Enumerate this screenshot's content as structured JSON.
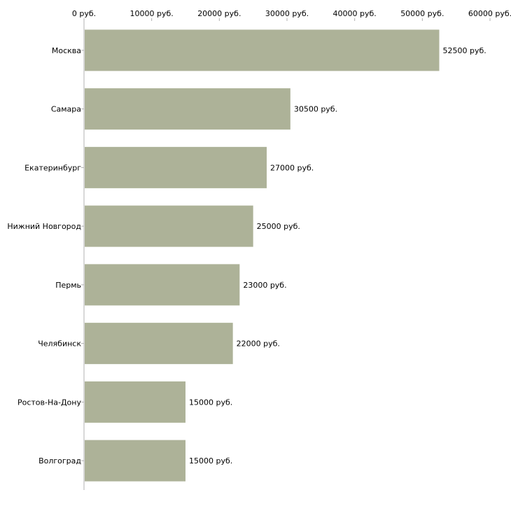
{
  "chart_data": {
    "type": "bar",
    "orientation": "horizontal",
    "title": "",
    "xlabel": "",
    "ylabel": "",
    "xlim": [
      0,
      60000
    ],
    "x_ticks": [
      0,
      10000,
      20000,
      30000,
      40000,
      50000,
      60000
    ],
    "tick_labels": [
      "0 руб.",
      "10000 руб.",
      "20000 руб.",
      "30000 руб.",
      "40000 руб.",
      "50000 руб.",
      "60000 руб."
    ],
    "unit_suffix": " руб.",
    "axis_position": "top",
    "grid": false,
    "categories": [
      "Москва",
      "Самара",
      "Екатеринбург",
      "Нижний Новгород",
      "Пермь",
      "Челябинск",
      "Ростов-На-Дону",
      "Волгоград"
    ],
    "values": [
      52500,
      30500,
      27000,
      25000,
      23000,
      22000,
      15000,
      15000
    ],
    "value_labels": [
      "52500 руб.",
      "30500 руб.",
      "27000 руб.",
      "25000 руб.",
      "23000 руб.",
      "22000 руб.",
      "15000 руб.",
      "15000 руб."
    ]
  },
  "colors": {
    "bar": "#adb298",
    "axis": "#b0b0b0",
    "text": "#000000"
  }
}
